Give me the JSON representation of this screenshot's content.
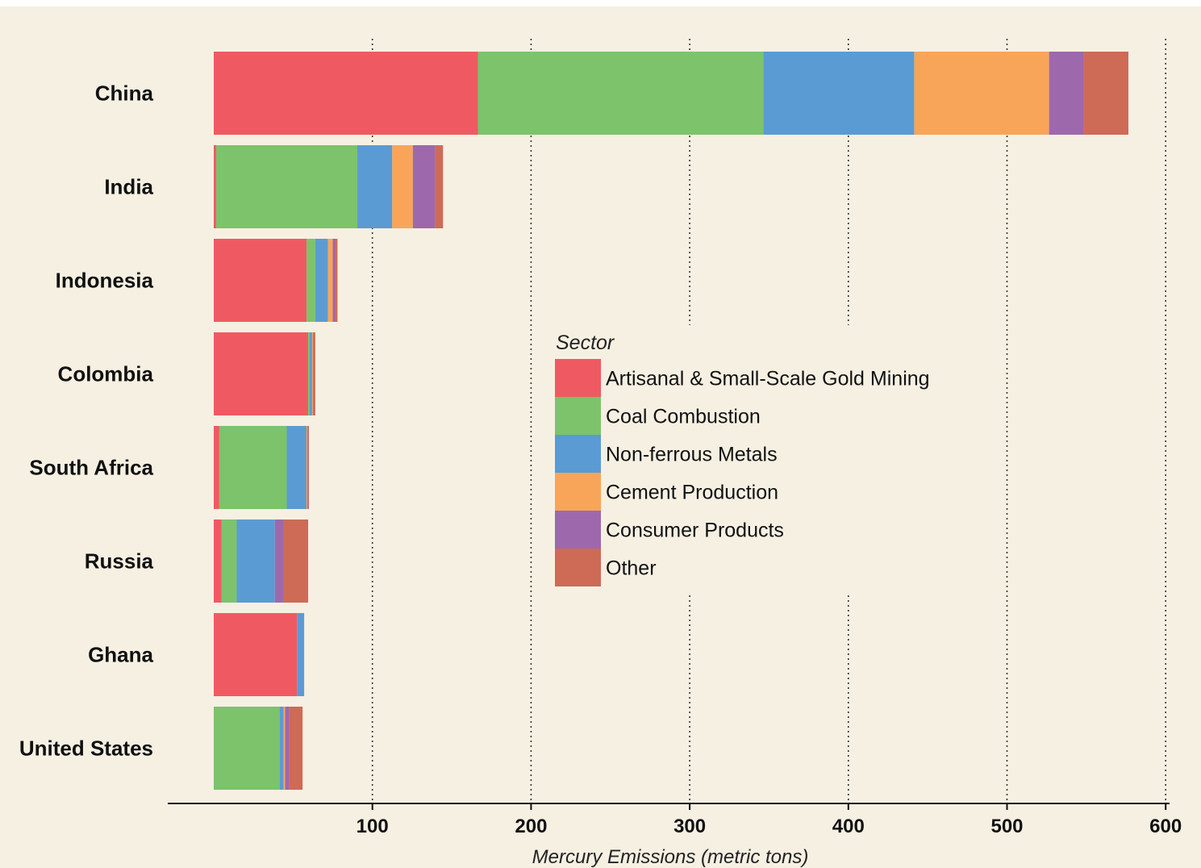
{
  "chart_data": {
    "type": "bar",
    "orientation": "horizontal",
    "stacked": true,
    "categories": [
      "China",
      "India",
      "Indonesia",
      "Colombia",
      "South Africa",
      "Russia",
      "Ghana",
      "United States"
    ],
    "series": [
      {
        "name": "Artisanal & Small-Scale Gold Mining",
        "color": "#ef5a62",
        "values": [
          166.5,
          1.5,
          58.5,
          59.5,
          3.5,
          5,
          52.5,
          0
        ]
      },
      {
        "name": "Coal Combustion",
        "color": "#7cc36b",
        "values": [
          180,
          89,
          5.5,
          1,
          42.5,
          9.5,
          0,
          41.5
        ]
      },
      {
        "name": "Non-ferrous Metals",
        "color": "#5a9bd4",
        "values": [
          95,
          22,
          8,
          1.5,
          12.5,
          24,
          4.5,
          2.5
        ]
      },
      {
        "name": "Cement Production",
        "color": "#f8a55a",
        "values": [
          85,
          13,
          3,
          0.5,
          0.5,
          0,
          0,
          1
        ]
      },
      {
        "name": "Consumer Products",
        "color": "#9e68ad",
        "values": [
          22,
          14,
          1.5,
          0.5,
          0.5,
          5.5,
          0,
          2.5
        ]
      },
      {
        "name": "Other",
        "color": "#cd6b56",
        "values": [
          28,
          5,
          1.5,
          1,
          0.5,
          15.5,
          0,
          8.5
        ]
      }
    ],
    "xlabel": "Mercury Emissions (metric tons)",
    "xlim": [
      -29,
      606
    ],
    "xticks": [
      100,
      200,
      300,
      400,
      500,
      600
    ],
    "grid": "vertical dotted",
    "legend": {
      "title": "Sector",
      "position": "center-right"
    }
  }
}
